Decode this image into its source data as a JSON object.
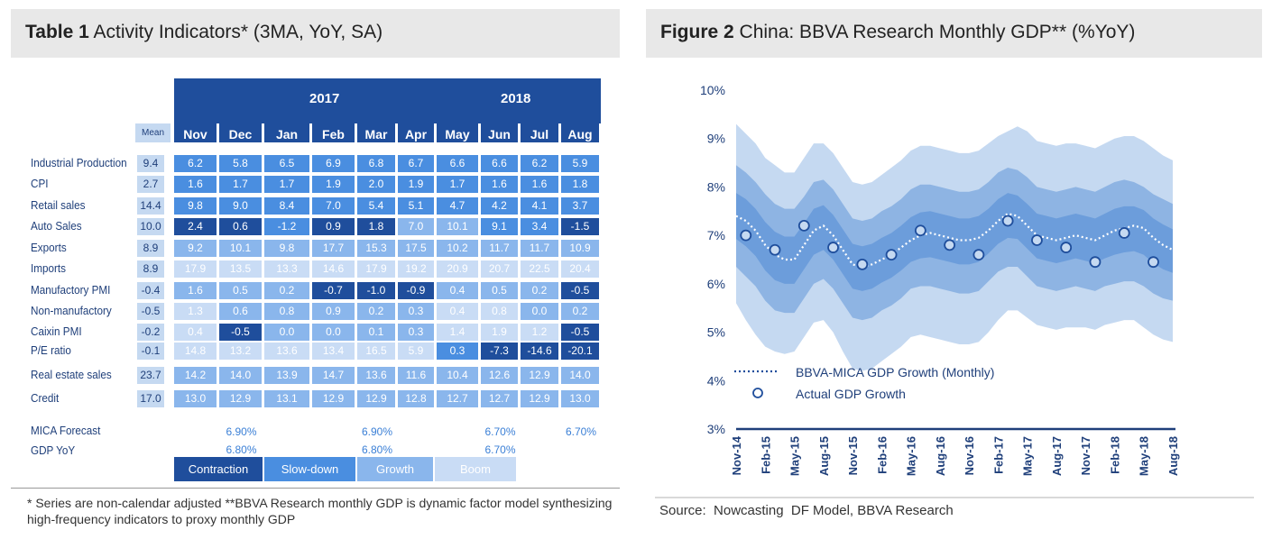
{
  "table": {
    "title_bold": "Table 1",
    "title_rest": " Activity Indicators* (3MA, YoY, SA)",
    "years": [
      "2017",
      "2018"
    ],
    "mean_header": "Mean",
    "months": [
      "Nov",
      "Dec",
      "Jan",
      "Feb",
      "Mar",
      "Apr",
      "May",
      "Jun",
      "Jul",
      "Aug"
    ],
    "rows": [
      {
        "label": "Industrial Production",
        "mean": "9.4",
        "values": [
          "6.2",
          "5.8",
          "6.5",
          "6.9",
          "6.8",
          "6.7",
          "6.6",
          "6.6",
          "6.2",
          "5.9"
        ],
        "status": [
          "S",
          "S",
          "S",
          "S",
          "S",
          "S",
          "S",
          "S",
          "S",
          "S"
        ]
      },
      {
        "label": "CPI",
        "mean": "2.7",
        "values": [
          "1.6",
          "1.7",
          "1.7",
          "1.9",
          "2.0",
          "1.9",
          "1.7",
          "1.6",
          "1.6",
          "1.8"
        ],
        "status": [
          "S",
          "S",
          "S",
          "S",
          "S",
          "S",
          "S",
          "S",
          "S",
          "S"
        ]
      },
      {
        "label": "Retail sales",
        "mean": "14.4",
        "values": [
          "9.8",
          "9.0",
          "8.4",
          "7.0",
          "5.4",
          "5.1",
          "4.7",
          "4.2",
          "4.1",
          "3.7"
        ],
        "status": [
          "S",
          "S",
          "S",
          "S",
          "S",
          "S",
          "S",
          "S",
          "S",
          "S"
        ]
      },
      {
        "label": "Auto Sales",
        "mean": "10.0",
        "values": [
          "2.4",
          "0.6",
          "-1.2",
          "0.9",
          "1.8",
          "7.0",
          "10.1",
          "9.1",
          "3.4",
          "-1.5"
        ],
        "status": [
          "C",
          "C",
          "S",
          "C",
          "C",
          "G",
          "G",
          "S",
          "S",
          "C"
        ]
      },
      {
        "label": "Exports",
        "mean": "8.9",
        "values": [
          "9.2",
          "10.1",
          "9.8",
          "17.7",
          "15.3",
          "17.5",
          "10.2",
          "11.7",
          "11.7",
          "10.9"
        ],
        "status": [
          "G",
          "G",
          "G",
          "G",
          "G",
          "G",
          "G",
          "G",
          "G",
          "G"
        ]
      },
      {
        "label": "Imports",
        "mean": "8.9",
        "values": [
          "17.9",
          "13.5",
          "13.3",
          "14.6",
          "17.9",
          "19.2",
          "20.9",
          "20.7",
          "22.5",
          "20.4"
        ],
        "status": [
          "B",
          "B",
          "B",
          "B",
          "B",
          "B",
          "B",
          "B",
          "B",
          "B"
        ]
      },
      {
        "label": "Manufactory PMI",
        "mean": "-0.4",
        "values": [
          "1.6",
          "0.5",
          "0.2",
          "-0.7",
          "-1.0",
          "-0.9",
          "0.4",
          "0.5",
          "0.2",
          "-0.5"
        ],
        "status": [
          "G",
          "G",
          "G",
          "C",
          "C",
          "C",
          "G",
          "G",
          "G",
          "C"
        ]
      },
      {
        "label": "Non-manufactory",
        "mean": "-0.5",
        "values": [
          "1.3",
          "0.6",
          "0.8",
          "0.9",
          "0.2",
          "0.3",
          "0.4",
          "0.8",
          "0.0",
          "0.2"
        ],
        "status": [
          "B",
          "G",
          "G",
          "G",
          "G",
          "G",
          "B",
          "B",
          "G",
          "G"
        ]
      },
      {
        "label": "Caixin PMI",
        "mean": "-0.2",
        "values": [
          "0.4",
          "-0.5",
          "0.0",
          "0.0",
          "0.1",
          "0.3",
          "1.4",
          "1.9",
          "1.2",
          "-0.5"
        ],
        "status": [
          "B",
          "C",
          "G",
          "G",
          "G",
          "G",
          "B",
          "B",
          "B",
          "C"
        ]
      },
      {
        "label": "P/E ratio",
        "mean": "-0.1",
        "values": [
          "14.8",
          "13.2",
          "13.6",
          "13.4",
          "16.5",
          "5.9",
          "0.3",
          "-7.3",
          "-14.6",
          "-20.1"
        ],
        "status": [
          "B",
          "B",
          "B",
          "B",
          "B",
          "B",
          "S",
          "C",
          "C",
          "C"
        ]
      },
      {
        "label": "Real estate sales",
        "mean": "23.7",
        "values": [
          "14.2",
          "14.0",
          "13.9",
          "14.7",
          "13.6",
          "11.6",
          "10.4",
          "12.6",
          "12.9",
          "14.0"
        ],
        "status": [
          "G",
          "G",
          "G",
          "G",
          "G",
          "G",
          "G",
          "G",
          "G",
          "G"
        ]
      },
      {
        "label": "Credit",
        "mean": "17.0",
        "values": [
          "13.0",
          "12.9",
          "13.1",
          "12.9",
          "12.9",
          "12.8",
          "12.7",
          "12.7",
          "12.9",
          "13.0"
        ],
        "status": [
          "G",
          "G",
          "G",
          "G",
          "G",
          "G",
          "G",
          "G",
          "G",
          "G"
        ]
      }
    ],
    "mica_label": "MICA Forecast",
    "gdp_label": "GDP YoY",
    "mica_values": [
      {
        "month": "Dec",
        "value": "6.90%"
      },
      {
        "month": "Mar",
        "value": "6.90%"
      },
      {
        "month": "Jun",
        "value": "6.70%"
      },
      {
        "month": "Aug",
        "value": "6.70%"
      }
    ],
    "gdp_values": [
      {
        "month": "Dec",
        "value": "6.80%"
      },
      {
        "month": "Mar",
        "value": "6.80%"
      },
      {
        "month": "Jun",
        "value": "6.70%"
      }
    ],
    "legend": [
      "Contraction",
      "Slow-down",
      "Growth",
      "Boom"
    ],
    "colors": {
      "contraction": "#1f4e9c",
      "slow_down": "#4a8ee0",
      "growth": "#8ab6ec",
      "boom": "#c9dcf5"
    },
    "footnote": "* Series are non-calendar adjusted **BBVA Research monthly GDP is dynamic factor model synthesizing high-frequency indicators to proxy monthly GDP"
  },
  "figure": {
    "title_bold": "Figure 2",
    "title_rest": " China: BBVA Research Monthly GDP** (%YoY)",
    "source": "Source:  Nowcasting  DF Model, BBVA Research"
  },
  "chart_data": {
    "type": "line",
    "title": "China: BBVA Research Monthly GDP** (%YoY)",
    "xlabel": "",
    "ylabel": "",
    "ylim": [
      3,
      10
    ],
    "yticks": [
      "3%",
      "4%",
      "5%",
      "6%",
      "7%",
      "8%",
      "9%",
      "10%"
    ],
    "xtick_labels": [
      "Nov-14",
      "Feb-15",
      "May-15",
      "Aug-15",
      "Nov-15",
      "Feb-16",
      "May-16",
      "Aug-16",
      "Nov-16",
      "Feb-17",
      "May-17",
      "Aug-17",
      "Nov-17",
      "Feb-18",
      "May-18",
      "Aug-18"
    ],
    "months": [
      "2014-11",
      "2014-12",
      "2015-01",
      "2015-02",
      "2015-03",
      "2015-04",
      "2015-05",
      "2015-06",
      "2015-07",
      "2015-08",
      "2015-09",
      "2015-10",
      "2015-11",
      "2015-12",
      "2016-01",
      "2016-02",
      "2016-03",
      "2016-04",
      "2016-05",
      "2016-06",
      "2016-07",
      "2016-08",
      "2016-09",
      "2016-10",
      "2016-11",
      "2016-12",
      "2017-01",
      "2017-02",
      "2017-03",
      "2017-04",
      "2017-05",
      "2017-06",
      "2017-07",
      "2017-08",
      "2017-09",
      "2017-10",
      "2017-11",
      "2017-12",
      "2018-01",
      "2018-02",
      "2018-03",
      "2018-04",
      "2018-05",
      "2018-06",
      "2018-07",
      "2018-08"
    ],
    "series": [
      {
        "name": "BBVA-MICA GDP Growth (Monthly)",
        "style": "dotted",
        "color": "#ffffff",
        "values": [
          7.4,
          7.3,
          7.1,
          6.8,
          6.6,
          6.5,
          6.5,
          6.8,
          7.1,
          7.2,
          7.0,
          6.7,
          6.4,
          6.35,
          6.4,
          6.5,
          6.6,
          6.75,
          6.9,
          7.0,
          7.05,
          7.0,
          6.95,
          6.9,
          6.9,
          6.95,
          7.1,
          7.3,
          7.45,
          7.4,
          7.2,
          7.0,
          6.95,
          6.9,
          6.95,
          7.0,
          6.95,
          6.9,
          7.0,
          7.1,
          7.15,
          7.2,
          7.15,
          6.95,
          6.8,
          6.7
        ]
      },
      {
        "name": "Actual GDP Growth",
        "style": "marker",
        "color": "#1f4e9c",
        "points": [
          {
            "x": "2014-12",
            "y": 7.0
          },
          {
            "x": "2015-03",
            "y": 6.7
          },
          {
            "x": "2015-06",
            "y": 7.2
          },
          {
            "x": "2015-09",
            "y": 6.75
          },
          {
            "x": "2015-12",
            "y": 6.4
          },
          {
            "x": "2016-03",
            "y": 6.6
          },
          {
            "x": "2016-06",
            "y": 7.1
          },
          {
            "x": "2016-09",
            "y": 6.8
          },
          {
            "x": "2016-12",
            "y": 6.6
          },
          {
            "x": "2017-03",
            "y": 7.3
          },
          {
            "x": "2017-06",
            "y": 6.9
          },
          {
            "x": "2017-09",
            "y": 6.75
          },
          {
            "x": "2017-12",
            "y": 6.45
          },
          {
            "x": "2018-03",
            "y": 7.05
          },
          {
            "x": "2018-06",
            "y": 6.45
          }
        ]
      }
    ],
    "bands": {
      "outer_upper": [
        9.3,
        9.1,
        8.9,
        8.6,
        8.45,
        8.3,
        8.3,
        8.6,
        8.9,
        8.9,
        8.7,
        8.4,
        8.1,
        8.05,
        8.1,
        8.25,
        8.4,
        8.55,
        8.75,
        8.85,
        8.85,
        8.8,
        8.75,
        8.7,
        8.7,
        8.75,
        8.9,
        9.05,
        9.15,
        9.25,
        9.15,
        8.95,
        8.9,
        8.85,
        8.9,
        8.9,
        8.85,
        8.8,
        8.9,
        9.0,
        9.05,
        9.05,
        8.95,
        8.8,
        8.65,
        8.55
      ],
      "inner_upper": [
        8.45,
        8.3,
        8.1,
        7.85,
        7.65,
        7.55,
        7.55,
        7.8,
        8.1,
        8.15,
        7.95,
        7.65,
        7.35,
        7.3,
        7.35,
        7.5,
        7.6,
        7.75,
        7.95,
        8.05,
        8.05,
        8.0,
        7.95,
        7.9,
        7.9,
        7.95,
        8.1,
        8.3,
        8.4,
        8.35,
        8.2,
        8.0,
        7.95,
        7.9,
        7.95,
        8.0,
        7.95,
        7.9,
        8.0,
        8.1,
        8.15,
        8.1,
        8.0,
        7.85,
        7.75,
        7.65
      ],
      "inner_lower": [
        6.35,
        6.15,
        5.95,
        5.65,
        5.45,
        5.4,
        5.4,
        5.7,
        6.0,
        6.1,
        5.9,
        5.6,
        5.3,
        5.25,
        5.3,
        5.45,
        5.55,
        5.7,
        5.9,
        5.95,
        5.95,
        5.9,
        5.85,
        5.8,
        5.8,
        5.85,
        6.05,
        6.25,
        6.35,
        6.35,
        6.15,
        5.95,
        5.9,
        5.85,
        5.9,
        5.95,
        5.9,
        5.85,
        5.95,
        6.0,
        6.05,
        6.05,
        5.95,
        5.8,
        5.7,
        5.65
      ],
      "outer_lower": [
        5.6,
        5.25,
        4.95,
        4.7,
        4.6,
        4.55,
        4.6,
        4.9,
        5.2,
        5.25,
        5.0,
        4.6,
        4.25,
        4.2,
        4.25,
        4.4,
        4.55,
        4.7,
        4.9,
        4.95,
        4.9,
        4.85,
        4.8,
        4.75,
        4.75,
        4.8,
        5.0,
        5.25,
        5.45,
        5.45,
        5.3,
        5.15,
        5.1,
        5.05,
        5.1,
        5.1,
        5.1,
        5.05,
        5.15,
        5.2,
        5.25,
        5.25,
        5.1,
        4.95,
        4.85,
        4.8
      ]
    },
    "band_colors": {
      "outer": "#c5d9f1",
      "inner": "#8eb4e3",
      "center": "#6c9ddb"
    },
    "legend": [
      "BBVA-MICA GDP Growth (Monthly)",
      "Actual GDP Growth"
    ],
    "legend_position": "bottom-left",
    "grid": false
  }
}
